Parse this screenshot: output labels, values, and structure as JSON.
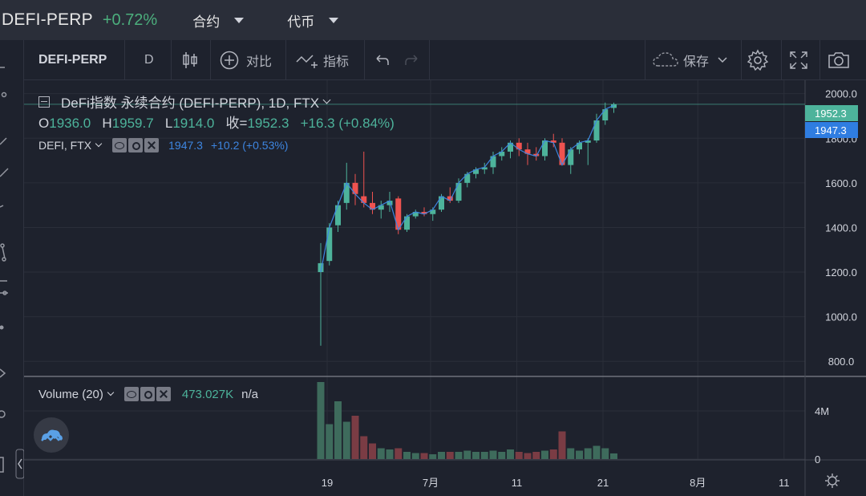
{
  "header": {
    "symbol": "DEFI-PERP",
    "change": "+0.72%",
    "menu_contract": "合约",
    "menu_coin": "代币"
  },
  "toolbar": {
    "symbol": "DEFI-PERP",
    "interval": "D",
    "compare": "对比",
    "indicators": "指标",
    "save": "保存"
  },
  "legend": {
    "title": "DeFi指数 永续合约 (DEFI-PERP), 1D, FTX",
    "o_label": "O",
    "o": "1936.0",
    "h_label": "H",
    "h": "1959.7",
    "l_label": "L",
    "l": "1914.0",
    "c_label": "收=",
    "c": "1952.3",
    "chg": "+16.3 (+0.84%)",
    "index_name": "DEFI, FTX",
    "index_value": "1947.3",
    "index_chg": "+10.2 (+0.53%)",
    "volume_name": "Volume (20)",
    "volume_value": "473.027K",
    "volume_ma": "n/a"
  },
  "price_tags": {
    "last": "1952.3",
    "index": "1947.3"
  },
  "colors": {
    "up": "#4db39b",
    "down": "#ef5350",
    "index_line": "#3d85e0",
    "vol_up": "#3e6b5c",
    "vol_down": "#7a3c44"
  },
  "chart_data": {
    "type": "candlestick",
    "y_ticks": [
      "2000.0",
      "1800.0",
      "1600.0",
      "1400.0",
      "1200.0",
      "1000.0",
      "800.0"
    ],
    "y_tick_values": [
      2000,
      1800,
      1600,
      1400,
      1200,
      1000,
      800
    ],
    "y_range": [
      736,
      2060
    ],
    "volume_ticks": [
      "4M",
      "0"
    ],
    "volume_tick_values": [
      4,
      0
    ],
    "volume_range": [
      0,
      6.8
    ],
    "x_labels": [
      "19",
      "7月",
      "11",
      "21",
      "8月",
      "11"
    ],
    "x_label_index": [
      0,
      12,
      22,
      32,
      43,
      53
    ],
    "candles": [
      {
        "o": 1200,
        "h": 1330,
        "l": 870,
        "c": 1240,
        "v": 6.4
      },
      {
        "o": 1250,
        "h": 1420,
        "l": 1230,
        "c": 1400,
        "v": 2.9
      },
      {
        "o": 1410,
        "h": 1520,
        "l": 1380,
        "c": 1500,
        "v": 4.8
      },
      {
        "o": 1510,
        "h": 1690,
        "l": 1480,
        "c": 1600,
        "v": 3.1
      },
      {
        "o": 1600,
        "h": 1640,
        "l": 1500,
        "c": 1550,
        "v": 3.6
      },
      {
        "o": 1540,
        "h": 1740,
        "l": 1490,
        "c": 1510,
        "v": 1.9
      },
      {
        "o": 1510,
        "h": 1560,
        "l": 1460,
        "c": 1480,
        "v": 1.3
      },
      {
        "o": 1480,
        "h": 1520,
        "l": 1440,
        "c": 1500,
        "v": 0.9
      },
      {
        "o": 1500,
        "h": 1560,
        "l": 1470,
        "c": 1520,
        "v": 0.8
      },
      {
        "o": 1530,
        "h": 1540,
        "l": 1370,
        "c": 1390,
        "v": 0.9
      },
      {
        "o": 1390,
        "h": 1460,
        "l": 1380,
        "c": 1450,
        "v": 0.6
      },
      {
        "o": 1450,
        "h": 1480,
        "l": 1440,
        "c": 1470,
        "v": 0.5
      },
      {
        "o": 1470,
        "h": 1490,
        "l": 1450,
        "c": 1460,
        "v": 0.5
      },
      {
        "o": 1460,
        "h": 1490,
        "l": 1430,
        "c": 1480,
        "v": 0.4
      },
      {
        "o": 1480,
        "h": 1550,
        "l": 1470,
        "c": 1540,
        "v": 0.6
      },
      {
        "o": 1540,
        "h": 1580,
        "l": 1510,
        "c": 1520,
        "v": 0.6
      },
      {
        "o": 1520,
        "h": 1620,
        "l": 1510,
        "c": 1600,
        "v": 0.6
      },
      {
        "o": 1600,
        "h": 1650,
        "l": 1580,
        "c": 1640,
        "v": 0.7
      },
      {
        "o": 1640,
        "h": 1670,
        "l": 1620,
        "c": 1660,
        "v": 0.6
      },
      {
        "o": 1660,
        "h": 1690,
        "l": 1640,
        "c": 1670,
        "v": 0.6
      },
      {
        "o": 1670,
        "h": 1740,
        "l": 1640,
        "c": 1720,
        "v": 0.7
      },
      {
        "o": 1720,
        "h": 1760,
        "l": 1700,
        "c": 1740,
        "v": 0.6
      },
      {
        "o": 1740,
        "h": 1790,
        "l": 1710,
        "c": 1780,
        "v": 0.8
      },
      {
        "o": 1780,
        "h": 1800,
        "l": 1720,
        "c": 1750,
        "v": 0.6
      },
      {
        "o": 1750,
        "h": 1780,
        "l": 1680,
        "c": 1730,
        "v": 0.5
      },
      {
        "o": 1730,
        "h": 1760,
        "l": 1700,
        "c": 1720,
        "v": 0.6
      },
      {
        "o": 1720,
        "h": 1800,
        "l": 1700,
        "c": 1790,
        "v": 0.7
      },
      {
        "o": 1790,
        "h": 1820,
        "l": 1760,
        "c": 1780,
        "v": 0.8
      },
      {
        "o": 1780,
        "h": 1800,
        "l": 1680,
        "c": 1680,
        "v": 2.3
      },
      {
        "o": 1680,
        "h": 1760,
        "l": 1640,
        "c": 1750,
        "v": 0.9
      },
      {
        "o": 1750,
        "h": 1790,
        "l": 1730,
        "c": 1780,
        "v": 0.7
      },
      {
        "o": 1780,
        "h": 1800,
        "l": 1680,
        "c": 1790,
        "v": 0.9
      },
      {
        "o": 1790,
        "h": 1910,
        "l": 1780,
        "c": 1880,
        "v": 1.1
      },
      {
        "o": 1880,
        "h": 1960,
        "l": 1860,
        "c": 1930,
        "v": 0.9
      },
      {
        "o": 1936,
        "h": 1959.7,
        "l": 1914,
        "c": 1952.3,
        "v": 0.47
      }
    ],
    "index_line": [
      1200,
      1400,
      1500,
      1600,
      1550,
      1510,
      1480,
      1500,
      1520,
      1390,
      1450,
      1470,
      1460,
      1480,
      1540,
      1520,
      1600,
      1640,
      1660,
      1670,
      1720,
      1740,
      1780,
      1750,
      1730,
      1720,
      1790,
      1780,
      1680,
      1750,
      1780,
      1790,
      1880,
      1930,
      1947.3
    ]
  }
}
